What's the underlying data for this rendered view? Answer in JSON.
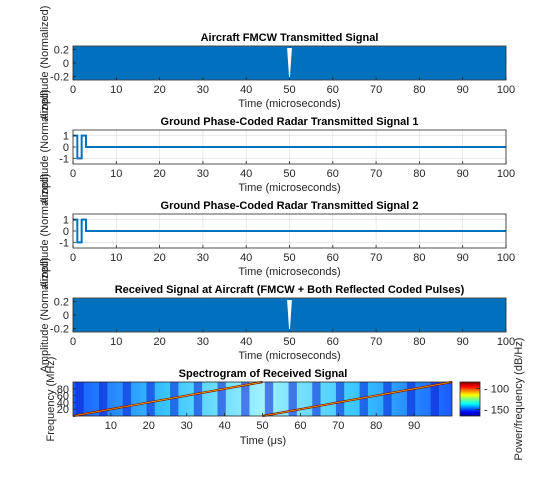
{
  "chart_data": [
    {
      "type": "line",
      "title": "Aircraft FMCW Transmitted Signal",
      "xlabel": "Time (microseconds)",
      "ylabel": "Amplitude (Normalized)",
      "xlim": [
        0,
        100
      ],
      "ylim": [
        -0.25,
        0.25
      ],
      "x_ticks": [
        0,
        10,
        20,
        30,
        40,
        50,
        60,
        70,
        80,
        90,
        100
      ],
      "y_ticks": [
        -0.2,
        0,
        0.2
      ],
      "grid": true,
      "series": [
        {
          "style": "dense-oscillation",
          "amplitude": 0.25,
          "spike_at": 50,
          "color": "#0072bd"
        }
      ]
    },
    {
      "type": "line",
      "title": "Ground Phase-Coded Radar Transmitted Signal 1",
      "xlabel": "Time (microseconds)",
      "ylabel": "Amplitude (Normalized)",
      "xlim": [
        0,
        100
      ],
      "ylim": [
        -1.5,
        1.5
      ],
      "x_ticks": [
        0,
        10,
        20,
        30,
        40,
        50,
        60,
        70,
        80,
        90,
        100
      ],
      "y_ticks": [
        -1,
        0,
        1
      ],
      "grid": true,
      "series": [
        {
          "style": "step",
          "points": [
            [
              0,
              1
            ],
            [
              1,
              1
            ],
            [
              1,
              -1
            ],
            [
              2,
              -1
            ],
            [
              2,
              1
            ],
            [
              3,
              1
            ],
            [
              3,
              0
            ],
            [
              100,
              0
            ]
          ],
          "color": "#0072bd"
        }
      ]
    },
    {
      "type": "line",
      "title": "Ground Phase-Coded Radar Transmitted Signal 2",
      "xlabel": "Time (microseconds)",
      "ylabel": "Amplitude (Normalized)",
      "xlim": [
        0,
        100
      ],
      "ylim": [
        -1.5,
        1.5
      ],
      "x_ticks": [
        0,
        10,
        20,
        30,
        40,
        50,
        60,
        70,
        80,
        90,
        100
      ],
      "y_ticks": [
        -1,
        0,
        1
      ],
      "grid": true,
      "series": [
        {
          "style": "step",
          "points": [
            [
              0,
              1
            ],
            [
              1,
              1
            ],
            [
              1,
              -1
            ],
            [
              2,
              -1
            ],
            [
              2,
              1
            ],
            [
              3,
              1
            ],
            [
              3,
              0
            ],
            [
              100,
              0
            ]
          ],
          "color": "#0072bd"
        }
      ]
    },
    {
      "type": "line",
      "title": "Received Signal at Aircraft (FMCW + Both Reflected Coded Pulses)",
      "xlabel": "Time (microseconds)",
      "ylabel": "Amplitude (Normalized)",
      "xlim": [
        0,
        100
      ],
      "ylim": [
        -0.25,
        0.25
      ],
      "x_ticks": [
        0,
        10,
        20,
        30,
        40,
        50,
        60,
        70,
        80,
        90,
        100
      ],
      "y_ticks": [
        -0.2,
        0,
        0.2
      ],
      "grid": true,
      "series": [
        {
          "style": "dense-oscillation",
          "amplitude": 0.25,
          "spike_at": 50,
          "color": "#0072bd"
        }
      ]
    },
    {
      "type": "heatmap",
      "title": "Spectrogram of Received Signal",
      "xlabel": "Time (μs)",
      "ylabel": "Frequency (MHz)",
      "xlim": [
        0,
        100
      ],
      "ylim": [
        0,
        100
      ],
      "x_ticks": [
        10,
        20,
        30,
        40,
        50,
        60,
        70,
        80,
        90
      ],
      "y_ticks": [
        20,
        40,
        60,
        80
      ],
      "colorbar": {
        "label": "Power/frequency (dB/Hz)",
        "ticks": [
          -100,
          -150
        ],
        "range": [
          -165,
          -85
        ],
        "colormap": "jet"
      },
      "chirps": [
        {
          "t_start": 0,
          "t_end": 50,
          "f_start": 0,
          "f_end": 100
        },
        {
          "t_start": 50,
          "t_end": 100,
          "f_start": 0,
          "f_end": 100
        }
      ],
      "stripe_count": 16
    }
  ]
}
